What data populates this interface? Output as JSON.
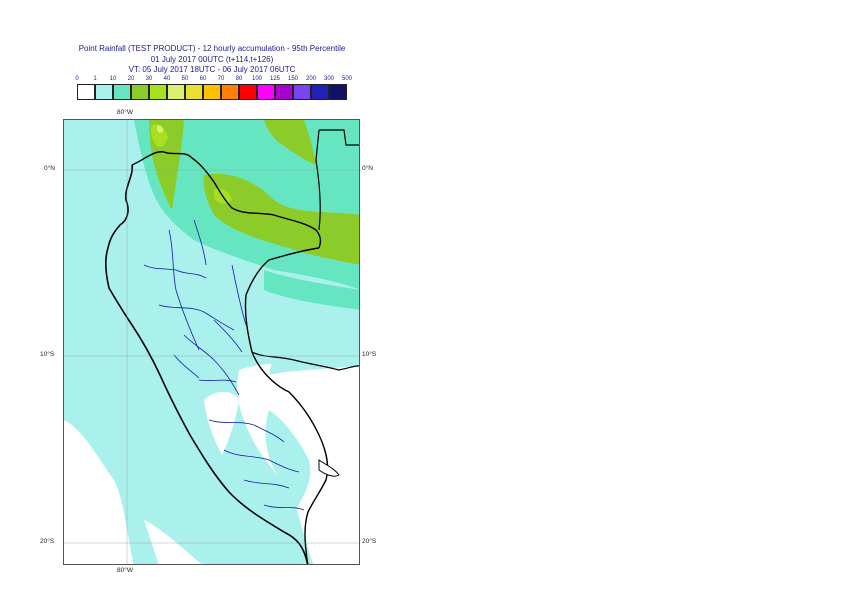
{
  "header": {
    "title_line1": "Point Rainfall (TEST PRODUCT) - 12 hourly accumulation - 95th Percentile",
    "title_line2": "01 July 2017 00UTC (t+114,t+126)",
    "title_line3": "VT: 05 July 2017 18UTC - 06 July 2017 06UTC"
  },
  "legend": {
    "thresholds": [
      "0",
      "1",
      "10",
      "20",
      "30",
      "40",
      "50",
      "60",
      "70",
      "80",
      "100",
      "125",
      "150",
      "200",
      "300",
      "500"
    ],
    "colors": [
      "#ffffff",
      "#aaf0ec",
      "#66e6c0",
      "#8ccc2a",
      "#a8e020",
      "#dcf070",
      "#e8e030",
      "#ffc000",
      "#ff8000",
      "#ff0000",
      "#ff00ff",
      "#aa00cc",
      "#7744ee",
      "#2222bb",
      "#111166"
    ]
  },
  "axes": {
    "lon_top": "80°W",
    "lon_bottom": "80°W",
    "lat_labels": [
      {
        "left": "0°N",
        "right": "0°N"
      },
      {
        "left": "10°S",
        "right": "10°S"
      },
      {
        "left": "20°S",
        "right": "20°S"
      }
    ]
  },
  "map_colors": {
    "ocean_light": "#aaf0ec",
    "mid": "#66e6c0",
    "green": "#8ccc2a",
    "bright_green": "#a8e020",
    "yellow_green": "#dcf070",
    "land_none": "#ffffff",
    "borders": "#000000",
    "regions": "#1a1aaa"
  }
}
